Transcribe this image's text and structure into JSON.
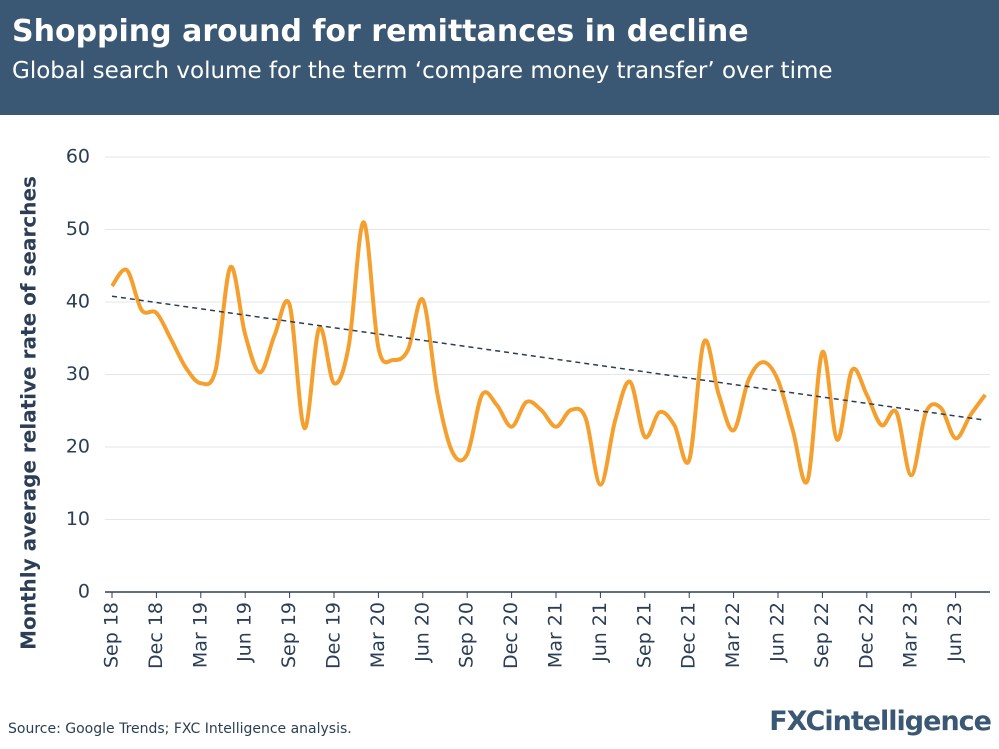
{
  "chart_data": {
    "type": "line",
    "title": "Shopping around for remittances in decline",
    "subtitle": "Global search volume for the term ‘compare money transfer’ over time",
    "y_label": "Monthly average relative rate of searches",
    "source": "Source: Google Trends; FXC Intelligence analysis.",
    "logo": "FXCintelligence",
    "categories": [
      "Sep 18",
      null,
      null,
      "Dec 18",
      null,
      null,
      "Mar 19",
      null,
      null,
      "Jun 19",
      null,
      null,
      "Sep 19",
      null,
      null,
      "Dec 19",
      null,
      null,
      "Mar 20",
      null,
      null,
      "Jun 20",
      null,
      null,
      "Sep 20",
      null,
      null,
      "Dec 20",
      null,
      null,
      "Mar 21",
      null,
      null,
      "Jun 21",
      null,
      null,
      "Sep 21",
      null,
      null,
      "Dec 21",
      null,
      null,
      "Mar 22",
      null,
      null,
      "Jun 22",
      null,
      null,
      "Sep 22",
      null,
      null,
      "Dec 22",
      null,
      null,
      "Mar 23",
      null,
      null,
      "Jun 23",
      null,
      null
    ],
    "series": [
      {
        "color": "#f5a02e",
        "values": [
          42.2,
          44.4,
          38.9,
          38.5,
          34.8,
          30.9,
          28.8,
          30.6,
          44.8,
          35.5,
          30.3,
          35.5,
          39.6,
          22.6,
          36.4,
          28.8,
          34,
          51,
          33.7,
          32,
          33.4,
          40.3,
          27.2,
          19.3,
          19,
          27.2,
          25.8,
          22.8,
          26.2,
          25.1,
          22.8,
          25.1,
          24,
          14.8,
          23.7,
          29,
          21.4,
          24.8,
          23,
          18.2,
          34.5,
          27.2,
          22.3,
          29.2,
          31.7,
          29.2,
          22.3,
          15.4,
          33.1,
          21,
          30.6,
          27.2,
          23,
          24.8,
          16.1,
          24.8,
          25.4,
          21.2,
          24.4,
          27.2
        ]
      }
    ],
    "trend": {
      "color": "#2b3e55",
      "values": [
        40.8,
        23.7
      ]
    },
    "ylim": [
      0,
      60
    ],
    "yticks": [
      0,
      10,
      20,
      30,
      40,
      50,
      60
    ],
    "grid": true
  }
}
